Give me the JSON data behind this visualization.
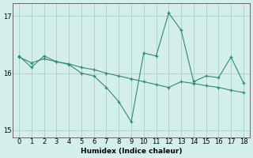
{
  "line1_x": [
    0,
    1,
    2,
    3,
    4,
    5,
    6,
    7,
    8,
    9,
    10,
    11,
    12,
    13,
    14,
    15,
    16,
    17,
    18
  ],
  "line1_y": [
    16.3,
    16.1,
    16.3,
    16.2,
    16.15,
    16.0,
    15.95,
    15.75,
    15.5,
    15.15,
    16.35,
    16.3,
    17.05,
    16.75,
    15.85,
    15.95,
    15.92,
    16.28,
    15.83
  ],
  "line2_x": [
    0,
    1,
    2,
    3,
    4,
    5,
    6,
    7,
    8,
    9,
    10,
    11,
    12,
    13,
    14,
    15,
    16,
    17,
    18
  ],
  "line2_y": [
    16.28,
    16.18,
    16.25,
    16.2,
    16.16,
    16.1,
    16.06,
    16.0,
    15.95,
    15.9,
    15.85,
    15.8,
    15.75,
    15.85,
    15.82,
    15.78,
    15.75,
    15.7,
    15.66
  ],
  "line_color": "#2e8b74",
  "bg_color": "#d4eeea",
  "grid_color": "#aed4cc",
  "xlabel": "Humidex (Indice chaleur)",
  "ylim": [
    14.88,
    17.22
  ],
  "xlim": [
    -0.5,
    18.5
  ],
  "yticks": [
    15,
    16,
    17
  ],
  "xticks": [
    0,
    1,
    2,
    3,
    4,
    5,
    6,
    7,
    8,
    9,
    10,
    11,
    12,
    13,
    14,
    15,
    16,
    17,
    18
  ]
}
